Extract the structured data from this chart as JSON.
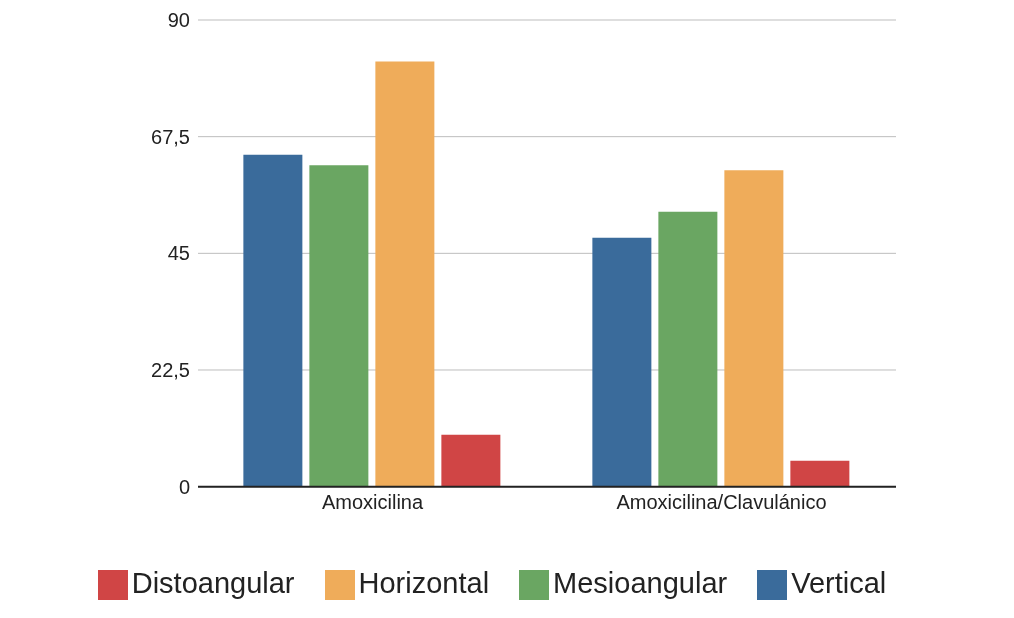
{
  "chart_data": {
    "type": "bar",
    "categories": [
      "Amoxicilina",
      "Amoxicilina/Clavulánico"
    ],
    "series": [
      {
        "name": "Vertical",
        "color": "#3a6b9b",
        "values": [
          64,
          48
        ]
      },
      {
        "name": "Mesioangular",
        "color": "#6aa662",
        "values": [
          62,
          53
        ]
      },
      {
        "name": "Horizontal",
        "color": "#efac5a",
        "values": [
          82,
          61
        ]
      },
      {
        "name": "Distoangular",
        "color": "#d04545",
        "values": [
          10,
          5
        ]
      }
    ],
    "ylim": [
      0,
      90
    ],
    "yticks": [
      0,
      {
        "value": 22.5,
        "label": "22,5"
      },
      45,
      {
        "value": 67.5,
        "label": "67,5"
      },
      90
    ],
    "grid": "y",
    "legend": "bottom"
  }
}
